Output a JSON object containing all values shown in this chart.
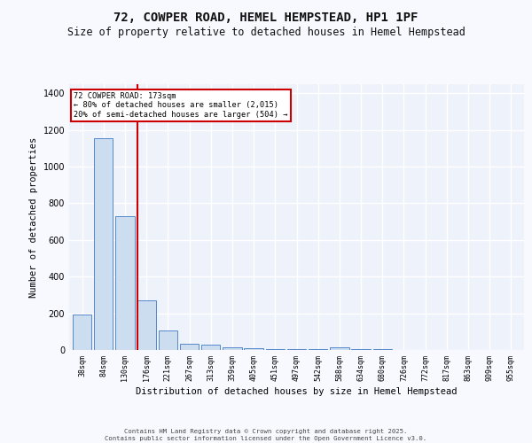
{
  "title": "72, COWPER ROAD, HEMEL HEMPSTEAD, HP1 1PF",
  "subtitle": "Size of property relative to detached houses in Hemel Hempstead",
  "xlabel": "Distribution of detached houses by size in Hemel Hempstead",
  "ylabel": "Number of detached properties",
  "categories": [
    "38sqm",
    "84sqm",
    "130sqm",
    "176sqm",
    "221sqm",
    "267sqm",
    "313sqm",
    "359sqm",
    "405sqm",
    "451sqm",
    "497sqm",
    "542sqm",
    "588sqm",
    "634sqm",
    "680sqm",
    "726sqm",
    "772sqm",
    "817sqm",
    "863sqm",
    "909sqm",
    "955sqm"
  ],
  "values": [
    195,
    1155,
    730,
    270,
    105,
    35,
    28,
    13,
    10,
    5,
    5,
    5,
    15,
    5,
    3,
    2,
    2,
    1,
    1,
    1,
    1
  ],
  "bar_color": "#ccddf0",
  "bar_edge_color": "#5588cc",
  "ylim": [
    0,
    1450
  ],
  "yticks": [
    0,
    200,
    400,
    600,
    800,
    1000,
    1200,
    1400
  ],
  "vline_x_index": 2.57,
  "vline_color": "#cc0000",
  "annotation_text": "72 COWPER ROAD: 173sqm\n← 80% of detached houses are smaller (2,015)\n20% of semi-detached houses are larger (504) →",
  "annotation_box_color": "#cc0000",
  "background_color": "#eef2fa",
  "grid_color": "#ffffff",
  "footer_text": "Contains HM Land Registry data © Crown copyright and database right 2025.\nContains public sector information licensed under the Open Government Licence v3.0.",
  "title_fontsize": 10,
  "subtitle_fontsize": 8.5,
  "xlabel_fontsize": 7.5,
  "ylabel_fontsize": 7.5,
  "fig_bg_color": "#f8f8ff"
}
